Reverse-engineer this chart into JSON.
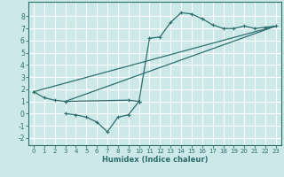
{
  "xlabel": "Humidex (Indice chaleur)",
  "bg_color": "#cce8e8",
  "grid_color": "#ffffff",
  "line_color": "#2d6e6e",
  "xlim": [
    -0.5,
    23.5
  ],
  "ylim": [
    -2.6,
    9.2
  ],
  "xticks": [
    0,
    1,
    2,
    3,
    4,
    5,
    6,
    7,
    8,
    9,
    10,
    11,
    12,
    13,
    14,
    15,
    16,
    17,
    18,
    19,
    20,
    21,
    22,
    23
  ],
  "yticks": [
    -2,
    -1,
    0,
    1,
    2,
    3,
    4,
    5,
    6,
    7,
    8
  ],
  "curves": [
    {
      "x": [
        0,
        1,
        2,
        3,
        9,
        10
      ],
      "y": [
        1.8,
        1.3,
        1.1,
        1.0,
        1.1,
        1.0
      ],
      "marker": true
    },
    {
      "x": [
        3,
        4,
        5,
        6,
        7,
        8,
        9,
        10
      ],
      "y": [
        0.0,
        -0.1,
        -0.3,
        -0.7,
        -1.5,
        -0.3,
        -0.1,
        1.0
      ],
      "marker": true
    },
    {
      "x": [
        10,
        11,
        12,
        13,
        14,
        15,
        16,
        17,
        18,
        19,
        20,
        21,
        22,
        23
      ],
      "y": [
        1.0,
        6.2,
        6.3,
        7.5,
        8.3,
        8.2,
        7.8,
        7.3,
        7.0,
        7.0,
        7.2,
        7.0,
        7.1,
        7.2
      ],
      "marker": true
    },
    {
      "x": [
        0,
        23
      ],
      "y": [
        1.8,
        7.2
      ],
      "marker": false
    },
    {
      "x": [
        3,
        23
      ],
      "y": [
        1.0,
        7.2
      ],
      "marker": false
    }
  ]
}
